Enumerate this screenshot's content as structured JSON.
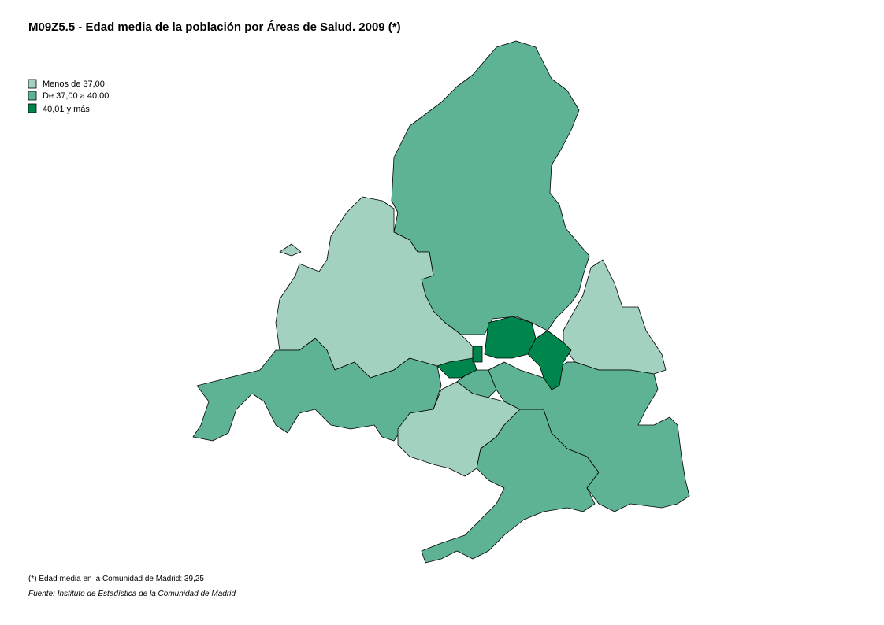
{
  "title": "M09Z5.5 - Edad media de la población por Áreas de Salud. 2009 (*)",
  "legend": {
    "items": [
      {
        "label": "Menos de 37,00",
        "color": "#a3d1bf"
      },
      {
        "label": "De 37,00 a 40,00",
        "color": "#5db393"
      },
      {
        "label": "40,01 y más",
        "color": "#00864c"
      }
    ]
  },
  "footnote": "(*) Edad  media en la Comunidad de Madrid: 39,25",
  "source": "Fuente: Instituto de Estadística de la Comunidad de Madrid"
}
